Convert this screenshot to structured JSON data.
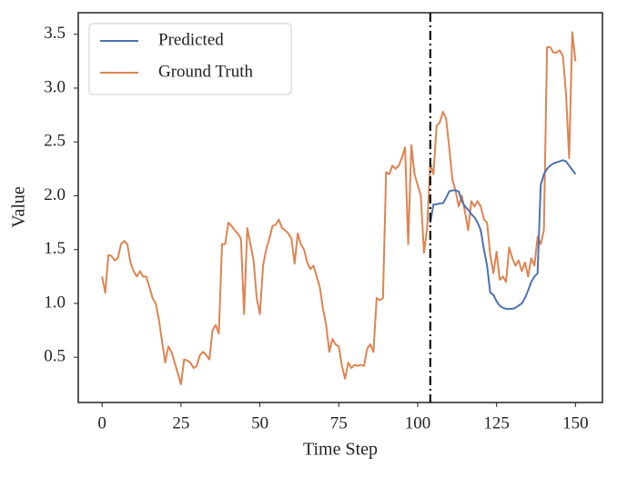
{
  "chart_data": {
    "type": "line",
    "xlabel": "Time Step",
    "ylabel": "Value",
    "xlim": [
      -7.55,
      158.55
    ],
    "ylim": [
      0.08,
      3.7
    ],
    "xticks": [
      0,
      25,
      50,
      75,
      100,
      125,
      150
    ],
    "yticks": [
      0.5,
      {
        "value": 1.0,
        "label": "1.0"
      },
      1.5,
      {
        "value": 2.0,
        "label": "2.0"
      },
      2.5,
      {
        "value": 3.0,
        "label": "3.0"
      },
      3.5
    ],
    "grid": false,
    "legend": "upper left",
    "vline_x": 104,
    "series": [
      {
        "name": "Predicted",
        "color": "#4c72b0",
        "x": [
          104,
          105,
          106,
          107,
          108,
          109,
          110,
          111,
          112,
          113,
          114,
          115,
          116,
          117,
          118,
          119,
          120,
          121,
          122,
          123,
          124,
          125,
          126,
          127,
          128,
          129,
          130,
          131,
          132,
          133,
          134,
          135,
          136,
          137,
          138,
          139,
          140,
          141,
          142,
          143,
          144,
          145,
          146,
          147,
          148,
          149,
          150
        ],
        "values": [
          1.75,
          1.92,
          1.92,
          1.93,
          1.93,
          1.98,
          2.04,
          2.05,
          2.05,
          2.04,
          1.95,
          1.9,
          1.87,
          1.83,
          1.8,
          1.75,
          1.68,
          1.5,
          1.35,
          1.1,
          1.08,
          1.02,
          0.98,
          0.96,
          0.95,
          0.95,
          0.95,
          0.96,
          0.98,
          1.0,
          1.05,
          1.12,
          1.2,
          1.25,
          1.28,
          2.1,
          2.2,
          2.25,
          2.28,
          2.3,
          2.31,
          2.32,
          2.33,
          2.32,
          2.28,
          2.24,
          2.2
        ]
      },
      {
        "name": "Ground Truth",
        "color": "#dd8452",
        "x": [
          0,
          1,
          2,
          3,
          4,
          5,
          6,
          7,
          8,
          9,
          10,
          11,
          12,
          13,
          14,
          15,
          16,
          17,
          18,
          19,
          20,
          21,
          22,
          23,
          24,
          25,
          26,
          27,
          28,
          29,
          30,
          31,
          32,
          33,
          34,
          35,
          36,
          37,
          38,
          39,
          40,
          41,
          42,
          43,
          44,
          45,
          46,
          47,
          48,
          49,
          50,
          51,
          52,
          53,
          54,
          55,
          56,
          57,
          58,
          59,
          60,
          61,
          62,
          63,
          64,
          65,
          66,
          67,
          68,
          69,
          70,
          71,
          72,
          73,
          74,
          75,
          76,
          77,
          78,
          79,
          80,
          81,
          82,
          83,
          84,
          85,
          86,
          87,
          88,
          89,
          90,
          91,
          92,
          93,
          94,
          95,
          96,
          97,
          98,
          99,
          100,
          101,
          102,
          103,
          104,
          105,
          106,
          107,
          108,
          109,
          110,
          111,
          112,
          113,
          114,
          115,
          116,
          117,
          118,
          119,
          120,
          121,
          122,
          123,
          124,
          125,
          126,
          127,
          128,
          129,
          130,
          131,
          132,
          133,
          134,
          135,
          136,
          137,
          138,
          139,
          140,
          141,
          142,
          143,
          144,
          145,
          146,
          147,
          148,
          149,
          150
        ],
        "values": [
          1.25,
          1.1,
          1.45,
          1.44,
          1.4,
          1.42,
          1.55,
          1.58,
          1.55,
          1.38,
          1.3,
          1.25,
          1.3,
          1.25,
          1.25,
          1.15,
          1.05,
          1.0,
          0.85,
          0.65,
          0.45,
          0.6,
          0.55,
          0.45,
          0.35,
          0.25,
          0.48,
          0.47,
          0.45,
          0.4,
          0.42,
          0.52,
          0.55,
          0.52,
          0.48,
          0.75,
          0.8,
          0.72,
          1.55,
          1.55,
          1.75,
          1.72,
          1.68,
          1.65,
          1.6,
          0.9,
          1.7,
          1.55,
          1.4,
          1.05,
          0.9,
          1.35,
          1.5,
          1.6,
          1.72,
          1.73,
          1.78,
          1.7,
          1.68,
          1.65,
          1.6,
          1.37,
          1.65,
          1.55,
          1.5,
          1.38,
          1.32,
          1.35,
          1.25,
          1.15,
          0.95,
          0.8,
          0.55,
          0.67,
          0.62,
          0.6,
          0.42,
          0.3,
          0.45,
          0.4,
          0.43,
          0.42,
          0.43,
          0.42,
          0.58,
          0.62,
          0.55,
          1.05,
          1.03,
          1.05,
          2.22,
          2.2,
          2.28,
          2.25,
          2.28,
          2.35,
          2.45,
          1.55,
          2.47,
          2.2,
          2.1,
          2.0,
          1.47,
          1.7,
          2.3,
          2.2,
          2.65,
          2.68,
          2.78,
          2.72,
          2.45,
          2.15,
          2.05,
          1.9,
          2.0,
          1.85,
          1.68,
          1.95,
          1.9,
          1.95,
          1.9,
          1.78,
          1.75,
          1.45,
          1.28,
          1.48,
          1.22,
          1.25,
          1.2,
          1.52,
          1.42,
          1.35,
          1.4,
          1.3,
          1.38,
          1.25,
          1.42,
          1.35,
          1.62,
          1.55,
          1.68,
          3.38,
          3.38,
          3.33,
          3.33,
          3.35,
          3.3,
          2.95,
          2.35,
          3.52,
          3.25
        ]
      }
    ]
  }
}
